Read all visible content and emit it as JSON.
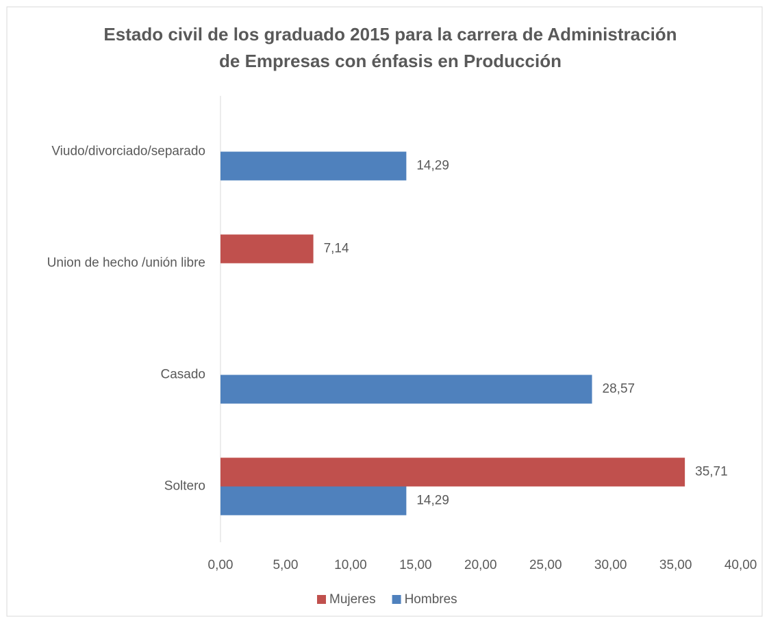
{
  "chart_data": {
    "type": "bar",
    "orientation": "horizontal",
    "title": [
      "Estado civil de los graduado 2015 para la carrera de Administración",
      "de Empresas con énfasis en Producción"
    ],
    "categories": [
      "Soltero",
      "Casado",
      "Union de hecho /unión libre",
      "Viudo/divorciado/separado"
    ],
    "series": [
      {
        "name": "Mujeres",
        "color": "#c0504d",
        "values": [
          35.71,
          null,
          7.14,
          null
        ],
        "value_labels": [
          "35,71",
          null,
          "7,14",
          null
        ]
      },
      {
        "name": "Hombres",
        "color": "#4f81bd",
        "values": [
          14.29,
          28.57,
          null,
          14.29
        ],
        "value_labels": [
          "14,29",
          "28,57",
          null,
          "14,29"
        ]
      }
    ],
    "xlim": [
      0,
      40
    ],
    "xticks": [
      {
        "value": 0,
        "label": "0,00"
      },
      {
        "value": 5,
        "label": "5,00"
      },
      {
        "value": 10,
        "label": "10,00"
      },
      {
        "value": 15,
        "label": "15,00"
      },
      {
        "value": 20,
        "label": "20,00"
      },
      {
        "value": 25,
        "label": "25,00"
      },
      {
        "value": 30,
        "label": "30,00"
      },
      {
        "value": 35,
        "label": "35,00"
      },
      {
        "value": 40,
        "label": "40,00"
      }
    ],
    "grid": false,
    "legend": "bottom"
  }
}
